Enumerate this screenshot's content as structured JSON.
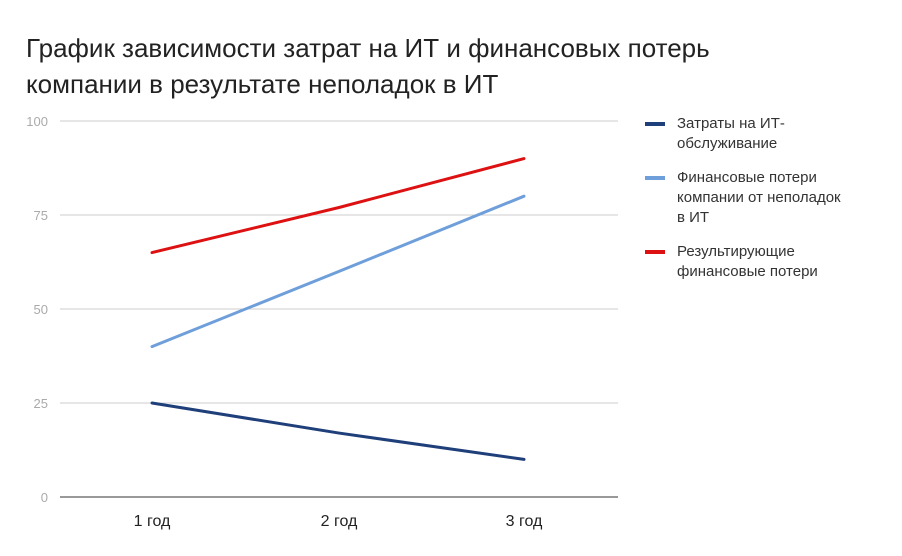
{
  "chart_data": {
    "type": "line",
    "title_lines": [
      "График зависимости затрат на ИТ и финансовых потерь",
      "компании в результате неполадок в ИТ"
    ],
    "categories": [
      "1 год",
      "2 год",
      "3 год"
    ],
    "ylim": [
      0,
      100
    ],
    "yticks": [
      0,
      25,
      50,
      75,
      100
    ],
    "grid": true,
    "legend_position": "right",
    "series": [
      {
        "name": "Затраты на ИТ-обслуживание",
        "legend_lines": [
          "Затраты на ИТ-",
          "обслуживание"
        ],
        "color": "#1f3f7a",
        "values": [
          25,
          17,
          10
        ]
      },
      {
        "name": "Финансовые потери компании от неполадок в ИТ",
        "legend_lines": [
          "Финансовые потери",
          "компании от неполадок",
          "в ИТ"
        ],
        "color": "#6f9fdb",
        "values": [
          40,
          60,
          80
        ]
      },
      {
        "name": "Результирующие финансовые потери",
        "legend_lines": [
          "Результирующие",
          "финансовые потери"
        ],
        "color": "#dd1111",
        "values": [
          65,
          77,
          90
        ]
      }
    ]
  }
}
